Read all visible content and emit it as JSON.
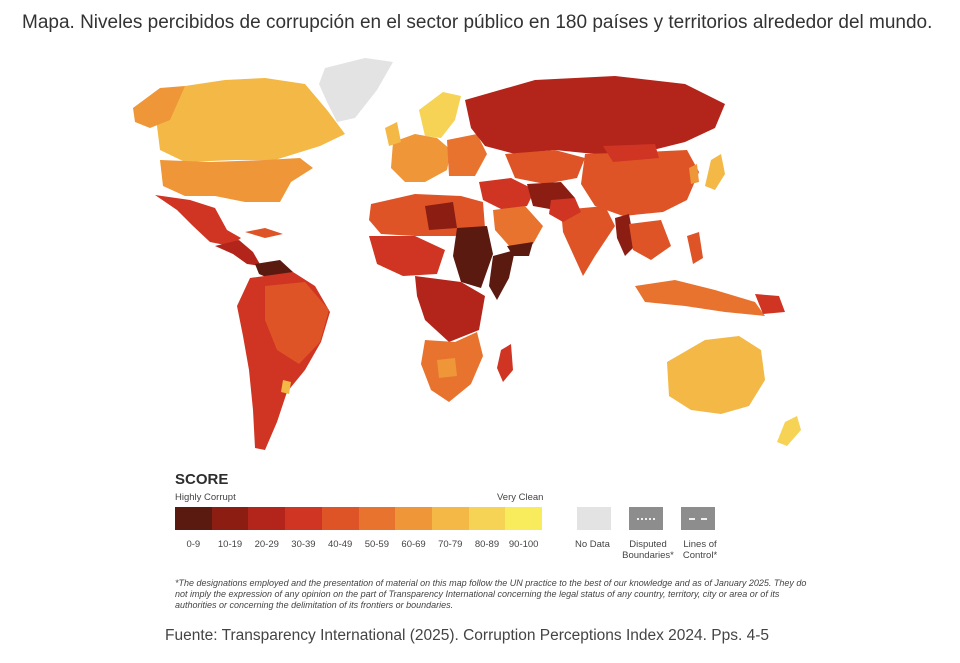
{
  "title": "Mapa. Niveles percibidos de corrupción en el sector público en 180 países y territorios alrededor del mundo.",
  "legend": {
    "heading": "SCORE",
    "low_label": "Highly Corrupt",
    "high_label": "Very Clean",
    "bins": [
      {
        "label": "0-9",
        "color": "#5a1a10"
      },
      {
        "label": "10-19",
        "color": "#8b1d13"
      },
      {
        "label": "20-29",
        "color": "#b3251a"
      },
      {
        "label": "30-39",
        "color": "#cf3522"
      },
      {
        "label": "40-49",
        "color": "#de5427"
      },
      {
        "label": "50-59",
        "color": "#e8732f"
      },
      {
        "label": "60-69",
        "color": "#ee9638"
      },
      {
        "label": "70-79",
        "color": "#f3b846"
      },
      {
        "label": "80-89",
        "color": "#f6d255"
      },
      {
        "label": "90-100",
        "color": "#f9ec5c"
      }
    ],
    "no_data": {
      "label": "No Data",
      "color": "#e3e3e3"
    },
    "disputed": {
      "label": "Disputed Boundaries*"
    },
    "lines_of_control": {
      "label": "Lines of Control*"
    }
  },
  "note": "*The designations employed and the presentation of material on this map follow the UN practice to the best of our knowledge and as of January 2025. They do not imply the expression of any opinion on the part of Transparency International concerning the legal status of any country, territory, city or area or of its authorities or concerning the delimitation of its frontiers or boundaries.",
  "source": "Fuente: Transparency International (2025). Corruption Perceptions Index 2024. Pps. 4-5"
}
